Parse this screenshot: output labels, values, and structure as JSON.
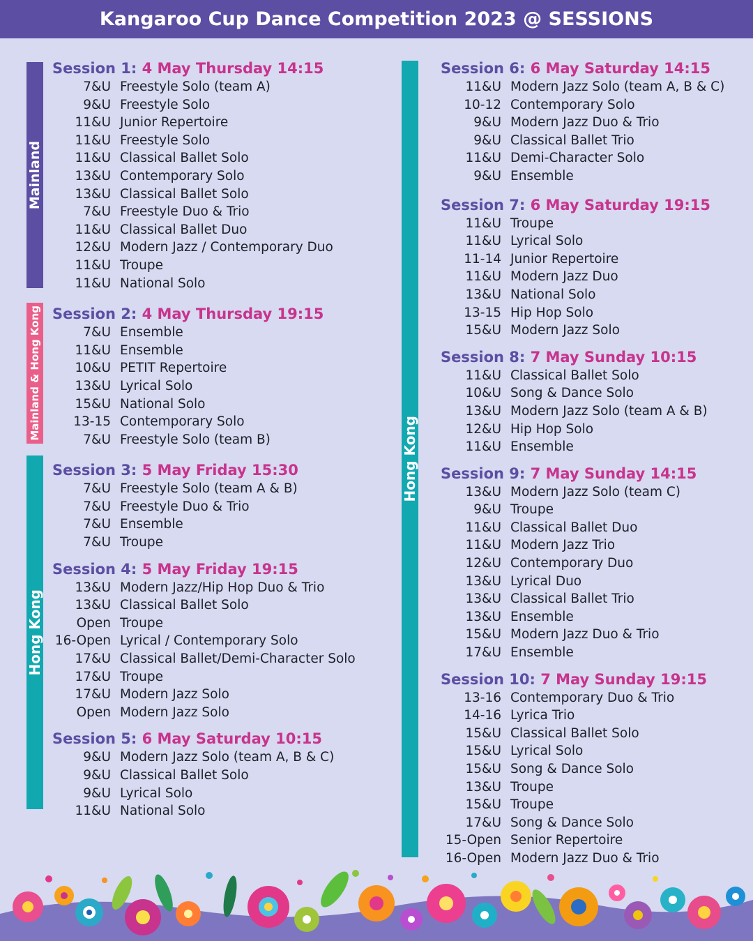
{
  "header": {
    "title": "Kangaroo Cup Dance Competition 2023 @ SESSIONS"
  },
  "regions": {
    "mainland": "Mainland",
    "mainland_hk": "Mainland & Hong Kong",
    "hong_kong_left": "Hong Kong",
    "hong_kong_right": "Hong Kong"
  },
  "colors": {
    "header": "#5b4ea3",
    "session_label": "#5b4ea3",
    "session_date": "#c8338d",
    "mainland_band": "#5b4ea3",
    "mainland_hk_band": "#ea5f8a",
    "hong_kong_band": "#12a8b0",
    "background": "#d7daf0"
  },
  "sessions": [
    {
      "label": "Session 1:",
      "when": "4 May  Thursday  14:15",
      "entries": [
        {
          "age": "7&U",
          "event": "Freestyle Solo (team A)"
        },
        {
          "age": "9&U",
          "event": "Freestyle Solo"
        },
        {
          "age": "11&U",
          "event": "Junior Repertoire"
        },
        {
          "age": "11&U",
          "event": "Freestyle Solo"
        },
        {
          "age": "11&U",
          "event": "Classical Ballet Solo"
        },
        {
          "age": "13&U",
          "event": "Contemporary Solo"
        },
        {
          "age": "13&U",
          "event": "Classical Ballet Solo"
        },
        {
          "age": "7&U",
          "event": "Freestyle Duo & Trio"
        },
        {
          "age": "11&U",
          "event": "Classical Ballet Duo"
        },
        {
          "age": "12&U",
          "event": "Modern Jazz / Contemporary Duo"
        },
        {
          "age": "11&U",
          "event": "Troupe"
        },
        {
          "age": "11&U",
          "event": "National Solo"
        }
      ]
    },
    {
      "label": "Session 2:",
      "when": "4 May  Thursday  19:15",
      "entries": [
        {
          "age": "7&U",
          "event": "Ensemble"
        },
        {
          "age": "11&U",
          "event": "Ensemble"
        },
        {
          "age": "10&U",
          "event": "PETIT Repertoire"
        },
        {
          "age": "13&U",
          "event": "Lyrical Solo"
        },
        {
          "age": "15&U",
          "event": "National Solo"
        },
        {
          "age": "13-15",
          "event": "Contemporary Solo"
        },
        {
          "age": "7&U",
          "event": "Freestyle Solo (team B)"
        }
      ]
    },
    {
      "label": "Session 3:",
      "when": "5 May  Friday  15:30",
      "entries": [
        {
          "age": "7&U",
          "event": "Freestyle Solo (team A & B)"
        },
        {
          "age": "7&U",
          "event": "Freestyle Duo & Trio"
        },
        {
          "age": "7&U",
          "event": "Ensemble"
        },
        {
          "age": "7&U",
          "event": "Troupe"
        }
      ]
    },
    {
      "label": "Session 4:",
      "when": "5 May  Friday  19:15",
      "entries": [
        {
          "age": "13&U",
          "event": "Modern Jazz/Hip Hop  Duo & Trio"
        },
        {
          "age": "13&U",
          "event": "Classical Ballet Solo"
        },
        {
          "age": "Open",
          "event": "Troupe"
        },
        {
          "age": "16-Open",
          "event": "Lyrical / Contemporary Solo"
        },
        {
          "age": "17&U",
          "event": "Classical Ballet/Demi-Character  Solo"
        },
        {
          "age": "17&U",
          "event": "Troupe"
        },
        {
          "age": "17&U",
          "event": "Modern Jazz Solo"
        },
        {
          "age": "Open",
          "event": "Modern Jazz Solo"
        }
      ]
    },
    {
      "label": "Session 5:",
      "when": "6 May  Saturday  10:15",
      "entries": [
        {
          "age": "9&U",
          "event": "Modern Jazz Solo (team A, B & C)"
        },
        {
          "age": "9&U",
          "event": "Classical Ballet Solo"
        },
        {
          "age": "9&U",
          "event": "Lyrical Solo"
        },
        {
          "age": "11&U",
          "event": "National Solo"
        }
      ]
    },
    {
      "label": "Session 6:",
      "when": "6 May  Saturday  14:15",
      "entries": [
        {
          "age": "11&U",
          "event": "Modern Jazz Solo  (team A, B & C)"
        },
        {
          "age": "10-12",
          "event": "Contemporary Solo"
        },
        {
          "age": "9&U",
          "event": "Modern Jazz Duo & Trio"
        },
        {
          "age": "9&U",
          "event": "Classical Ballet Trio"
        },
        {
          "age": "11&U",
          "event": "Demi-Character Solo"
        },
        {
          "age": "9&U",
          "event": "Ensemble"
        }
      ]
    },
    {
      "label": "Session 7:",
      "when": "6 May  Saturday  19:15",
      "entries": [
        {
          "age": "11&U",
          "event": "Troupe"
        },
        {
          "age": "11&U",
          "event": "Lyrical Solo"
        },
        {
          "age": "11-14",
          "event": "Junior Repertoire"
        },
        {
          "age": "11&U",
          "event": "Modern Jazz Duo"
        },
        {
          "age": "13&U",
          "event": "National Solo"
        },
        {
          "age": "13-15",
          "event": "Hip Hop Solo"
        },
        {
          "age": "15&U",
          "event": "Modern Jazz Solo"
        }
      ]
    },
    {
      "label": "Session 8:",
      "when": "7 May  Sunday  10:15",
      "entries": [
        {
          "age": "11&U",
          "event": "Classical Ballet Solo"
        },
        {
          "age": "10&U",
          "event": "Song & Dance Solo"
        },
        {
          "age": "13&U",
          "event": "Modern Jazz Solo (team A & B)"
        },
        {
          "age": "12&U",
          "event": "Hip Hop Solo"
        },
        {
          "age": "11&U",
          "event": "Ensemble"
        }
      ]
    },
    {
      "label": "Session 9:",
      "when": "7 May  Sunday  14:15",
      "entries": [
        {
          "age": "13&U",
          "event": "Modern Jazz Solo (team C)"
        },
        {
          "age": "9&U",
          "event": "Troupe"
        },
        {
          "age": "11&U",
          "event": "Classical Ballet Duo"
        },
        {
          "age": "11&U",
          "event": "Modern Jazz Trio"
        },
        {
          "age": "12&U",
          "event": "Contemporary Duo"
        },
        {
          "age": "13&U",
          "event": "Lyrical Duo"
        },
        {
          "age": "13&U",
          "event": "Classical Ballet  Trio"
        },
        {
          "age": "13&U",
          "event": "Ensemble"
        },
        {
          "age": "15&U",
          "event": "Modern Jazz Duo & Trio"
        },
        {
          "age": "17&U",
          "event": "Ensemble"
        }
      ]
    },
    {
      "label": "Session 10:",
      "when": "7 May  Sunday  19:15",
      "entries": [
        {
          "age": "13-16",
          "event": "Contemporary Duo & Trio"
        },
        {
          "age": "14-16",
          "event": "Lyrica Trio"
        },
        {
          "age": "15&U",
          "event": "Classical Ballet Solo"
        },
        {
          "age": "15&U",
          "event": "Lyrical Solo"
        },
        {
          "age": "15&U",
          "event": "Song & Dance Solo"
        },
        {
          "age": "13&U",
          "event": "Troupe"
        },
        {
          "age": "15&U",
          "event": "Troupe"
        },
        {
          "age": "17&U",
          "event": "Song & Dance Solo"
        },
        {
          "age": "15-Open",
          "event": "Senior Repertoire"
        },
        {
          "age": "16-Open",
          "event": "Modern Jazz Duo & Trio"
        }
      ]
    }
  ]
}
